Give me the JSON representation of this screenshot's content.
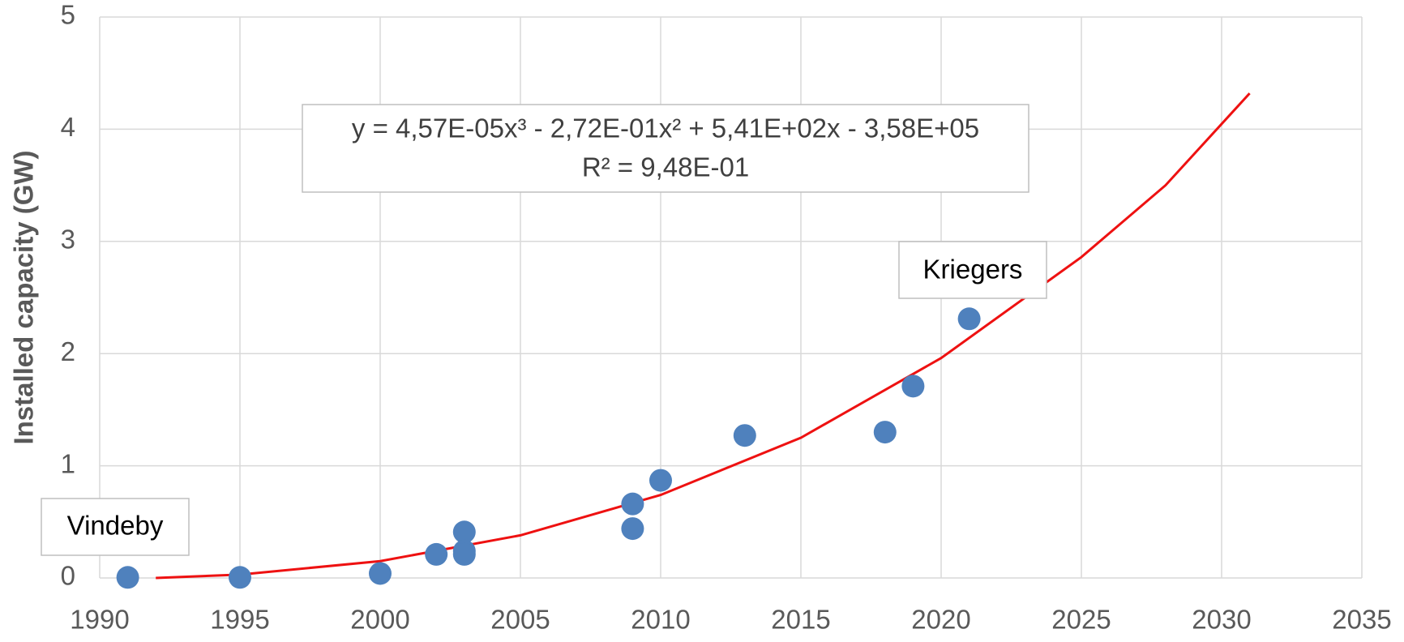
{
  "chart_data": {
    "type": "scatter",
    "y_label": "Installed capacity (GW)",
    "x": [
      1991,
      1995,
      2000,
      2002,
      2003,
      2003,
      2003,
      2009,
      2009,
      2010,
      2013,
      2018,
      2019,
      2021
    ],
    "values": [
      0.005,
      0.005,
      0.04,
      0.21,
      0.41,
      0.24,
      0.21,
      0.66,
      0.44,
      0.87,
      1.27,
      1.3,
      1.71,
      2.31
    ],
    "color": "#4f81bd",
    "trendline": {
      "color": "#ee1111",
      "x": [
        1992,
        1995,
        2000,
        2005,
        2010,
        2015,
        2020,
        2025,
        2028,
        2031
      ],
      "values": [
        0,
        0.03,
        0.15,
        0.38,
        0.74,
        1.25,
        1.96,
        2.86,
        3.5,
        4.32
      ]
    },
    "annotations": [
      "y = 4,57E-05x³ - 2,72E-01x² + 5,41E+02x - 3,58E+05",
      "R² = 9,48E-01",
      "Vindeby",
      "Kriegers"
    ],
    "xlim": [
      1990,
      2035
    ],
    "xticks": [
      1990,
      1995,
      2000,
      2005,
      2010,
      2015,
      2020,
      2025,
      2030,
      2035
    ],
    "ylim": [
      0,
      5
    ],
    "yticks": [
      0,
      1,
      2,
      3,
      4,
      5
    ],
    "grid": true
  }
}
